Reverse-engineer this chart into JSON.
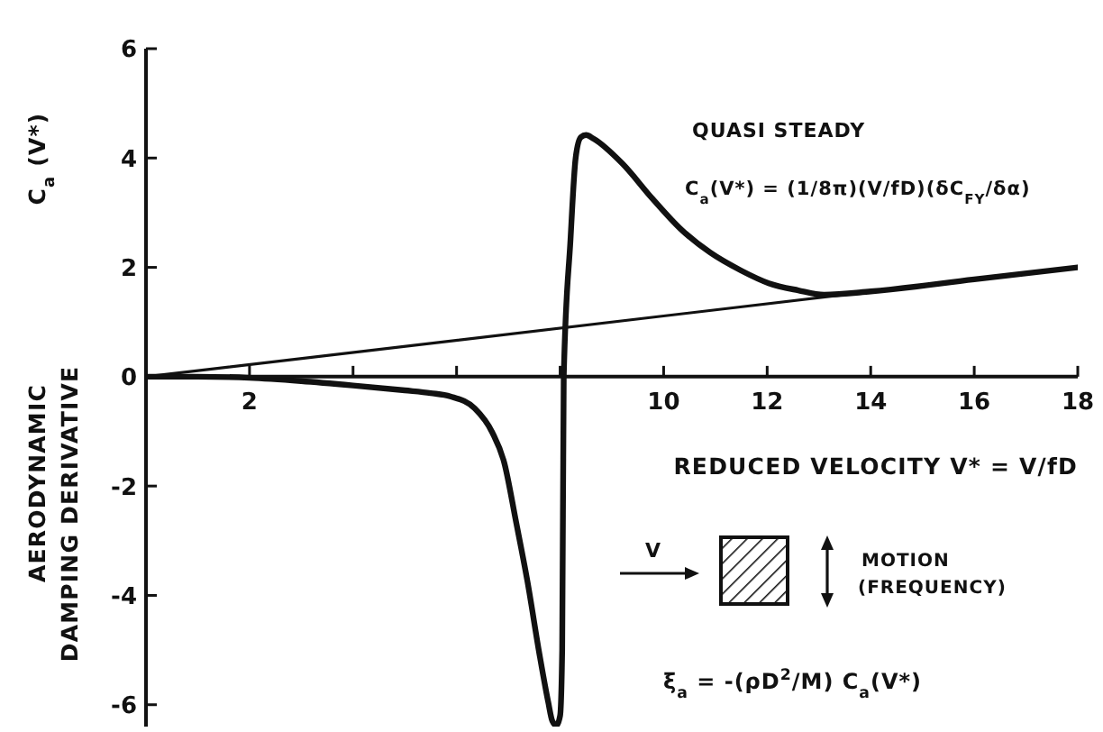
{
  "chart_data": {
    "type": "line",
    "xlabel": "REDUCED VELOCITY  V* = V/fD",
    "ylabel": "AERODYNAMIC\nDAMPING DERIVATIVE\nC$_{a}$ (V*)",
    "xlim": [
      0,
      18
    ],
    "xticks": [
      2,
      {
        "value": 4,
        "label": null
      },
      {
        "value": 6,
        "label": null
      },
      {
        "value": 8,
        "label": null
      },
      10,
      12,
      14,
      16,
      18
    ],
    "ylim": [
      -6.4,
      6
    ],
    "yticks": [
      -6,
      -4,
      -2,
      0,
      2,
      4,
      6
    ],
    "marker": "none",
    "annotations": [
      "QUASI STEADY",
      "C$_{a}$(V*) = (1/8π)(V/fD)(δC$_{FY}$/δα)",
      "V",
      "MOTION",
      "(FREQUENCY)",
      "ξ$_{a}$ = -(ρD$^{2}$/M) C$_{a}$(V*)"
    ],
    "series": [
      {
        "color": "#111111",
        "x": [
          0,
          1,
          2,
          3,
          4,
          5,
          5.5,
          5.88,
          6.35,
          6.69,
          6.92,
          7.15,
          7.37,
          7.6,
          7.77,
          7.85,
          7.93,
          8.0,
          8.04,
          8.07,
          8.2,
          8.3,
          8.4,
          8.5,
          8.65,
          9.2,
          9.78,
          10.33,
          10.9,
          11.5,
          12.03,
          12.6,
          13.1,
          14,
          16,
          18
        ],
        "values": [
          0,
          0,
          -0.02,
          -0.08,
          -0.16,
          -0.25,
          -0.3,
          -0.36,
          -0.58,
          -1.02,
          -1.57,
          -2.66,
          -3.75,
          -5.07,
          -5.95,
          -6.3,
          -6.38,
          -6.2,
          -5.0,
          0,
          2.5,
          4.0,
          4.38,
          4.42,
          4.35,
          3.9,
          3.26,
          2.7,
          2.27,
          1.94,
          1.71,
          1.58,
          1.5,
          1.56,
          1.78,
          2.0
        ]
      },
      {
        "color": "#111111",
        "x": [
          0,
          18
        ],
        "values": [
          0,
          2.0
        ]
      }
    ]
  }
}
